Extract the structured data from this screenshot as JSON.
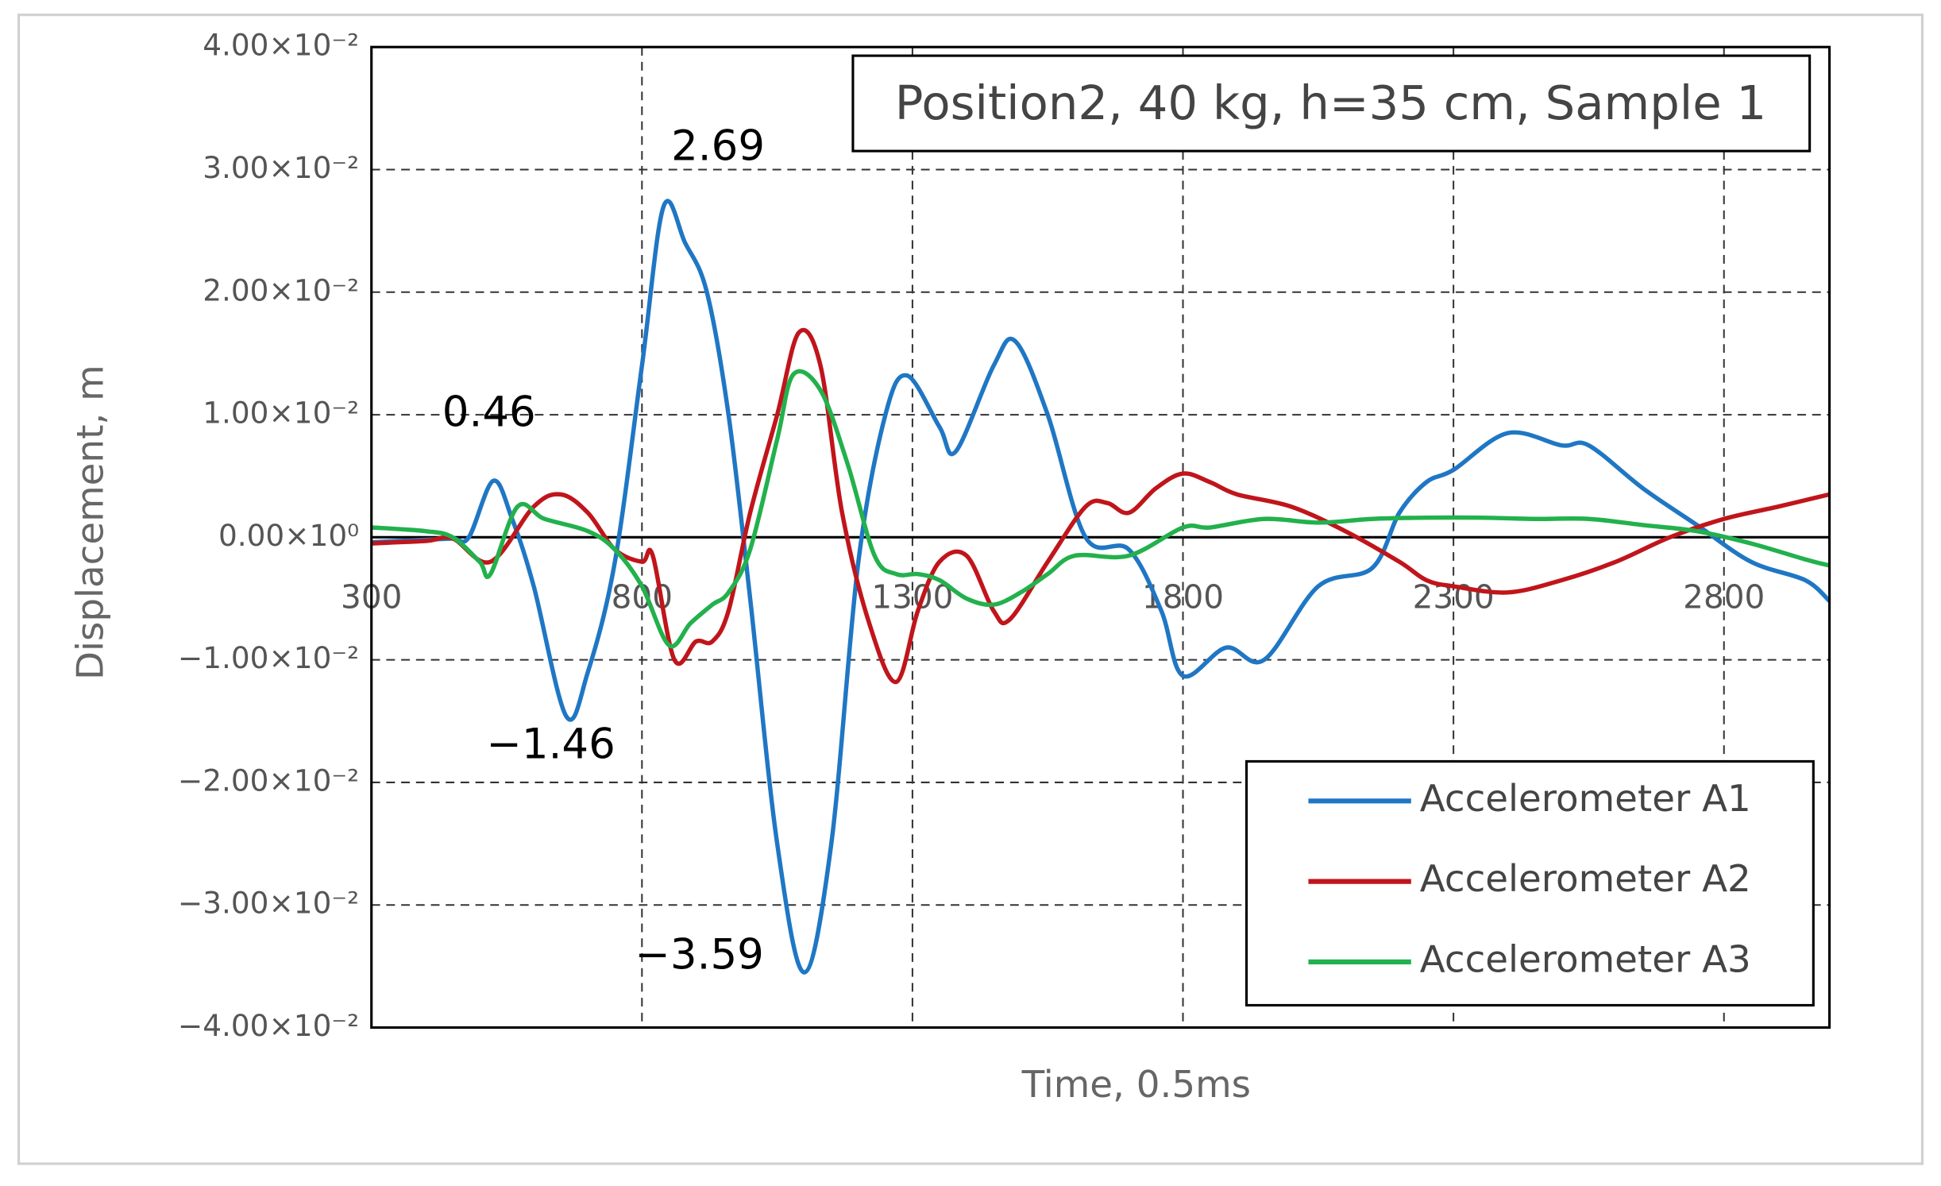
{
  "chart_data": {
    "type": "line",
    "title": "Position2, 40 kg, h=35 cm, Sample 1",
    "xlabel": "Time, 0.5ms",
    "ylabel": "Displacement, m",
    "xlim": [
      300,
      2995
    ],
    "ylim": [
      -0.04,
      0.04
    ],
    "xticks": [
      300,
      800,
      1300,
      1800,
      2300,
      2800
    ],
    "yticks": [
      {
        "value": -0.04,
        "label": "−4.00×10⁻²"
      },
      {
        "value": -0.03,
        "label": "−3.00×10⁻²"
      },
      {
        "value": -0.02,
        "label": "−2.00×10⁻²"
      },
      {
        "value": -0.01,
        "label": "−1.00×10⁻²"
      },
      {
        "value": 0,
        "label": "0.00×10⁰"
      },
      {
        "value": 0.01,
        "label": "1.00×10⁻²"
      },
      {
        "value": 0.02,
        "label": "2.00×10⁻²"
      },
      {
        "value": 0.03,
        "label": "3.00×10⁻²"
      },
      {
        "value": 0.04,
        "label": "4.00×10⁻²"
      }
    ],
    "grid": true,
    "legend": "lower right",
    "annotations": [
      "2.69",
      "0.46",
      "−1.46",
      "−3.59"
    ],
    "series": [
      {
        "name": "Accelerometer A1",
        "color": "#1f77c4",
        "x": [
          300,
          350,
          400,
          450,
          480,
          525,
          560,
          600,
          660,
          700,
          750,
          800,
          840,
          880,
          920,
          960,
          1000,
          1050,
          1100,
          1150,
          1200,
          1250,
          1290,
          1350,
          1380,
          1450,
          1490,
          1550,
          1620,
          1700,
          1760,
          1800,
          1880,
          1950,
          2050,
          2150,
          2200,
          2250,
          2300,
          2400,
          2500,
          2550,
          2650,
          2750,
          2850,
          2950,
          2995
        ],
        "values": [
          -0.0004,
          -0.0003,
          -0.0002,
          -0.0001,
          0.0,
          0.0046,
          0.0015,
          -0.004,
          -0.0146,
          -0.011,
          -0.002,
          0.014,
          0.027,
          0.024,
          0.02,
          0.01,
          -0.005,
          -0.025,
          -0.0355,
          -0.025,
          -0.002,
          0.01,
          0.0132,
          0.009,
          0.007,
          0.014,
          0.016,
          0.01,
          0.0,
          -0.001,
          -0.006,
          -0.0113,
          -0.009,
          -0.01,
          -0.004,
          -0.0025,
          0.002,
          0.0045,
          0.0055,
          0.0085,
          0.0075,
          0.0075,
          0.004,
          0.001,
          -0.002,
          -0.0035,
          -0.0052
        ]
      },
      {
        "name": "Accelerometer A2",
        "color": "#c0151b",
        "x": [
          300,
          400,
          450,
          520,
          600,
          650,
          700,
          750,
          800,
          820,
          860,
          900,
          930,
          960,
          1000,
          1050,
          1090,
          1130,
          1170,
          1220,
          1270,
          1310,
          1350,
          1400,
          1450,
          1480,
          1550,
          1620,
          1660,
          1700,
          1750,
          1800,
          1850,
          1900,
          2000,
          2100,
          2200,
          2250,
          2300,
          2400,
          2500,
          2600,
          2700,
          2800,
          2900,
          2995
        ],
        "values": [
          -0.0005,
          -0.0003,
          -0.0001,
          -0.002,
          0.0025,
          0.0035,
          0.002,
          -0.001,
          -0.002,
          -0.0015,
          -0.01,
          -0.0085,
          -0.0085,
          -0.006,
          0.002,
          0.01,
          0.0167,
          0.014,
          0.002,
          -0.007,
          -0.0118,
          -0.006,
          -0.002,
          -0.0015,
          -0.006,
          -0.0067,
          -0.002,
          0.0025,
          0.0028,
          0.002,
          0.004,
          0.0052,
          0.0045,
          0.0035,
          0.0025,
          0.0005,
          -0.002,
          -0.0035,
          -0.004,
          -0.0045,
          -0.0035,
          -0.002,
          0.0,
          0.0015,
          0.0025,
          0.0035
        ]
      },
      {
        "name": "Accelerometer A3",
        "color": "#22b14c",
        "x": [
          300,
          400,
          450,
          500,
          520,
          570,
          620,
          700,
          750,
          800,
          850,
          890,
          930,
          960,
          1000,
          1050,
          1080,
          1130,
          1180,
          1230,
          1270,
          1310,
          1350,
          1400,
          1450,
          1500,
          1550,
          1600,
          1700,
          1800,
          1850,
          1950,
          2050,
          2150,
          2250,
          2350,
          2450,
          2550,
          2650,
          2750,
          2850,
          2950,
          2995
        ],
        "values": [
          0.0008,
          0.0005,
          0.0,
          -0.002,
          -0.003,
          0.0025,
          0.0015,
          0.0005,
          -0.001,
          -0.004,
          -0.0088,
          -0.007,
          -0.0055,
          -0.0045,
          -0.001,
          0.008,
          0.0133,
          0.012,
          0.006,
          -0.0015,
          -0.003,
          -0.003,
          -0.0035,
          -0.005,
          -0.0055,
          -0.0045,
          -0.003,
          -0.0015,
          -0.0015,
          0.0008,
          0.0008,
          0.0015,
          0.0012,
          0.0015,
          0.0016,
          0.0016,
          0.0015,
          0.0015,
          0.001,
          0.0005,
          -0.0005,
          -0.0018,
          -0.0023
        ]
      }
    ]
  }
}
